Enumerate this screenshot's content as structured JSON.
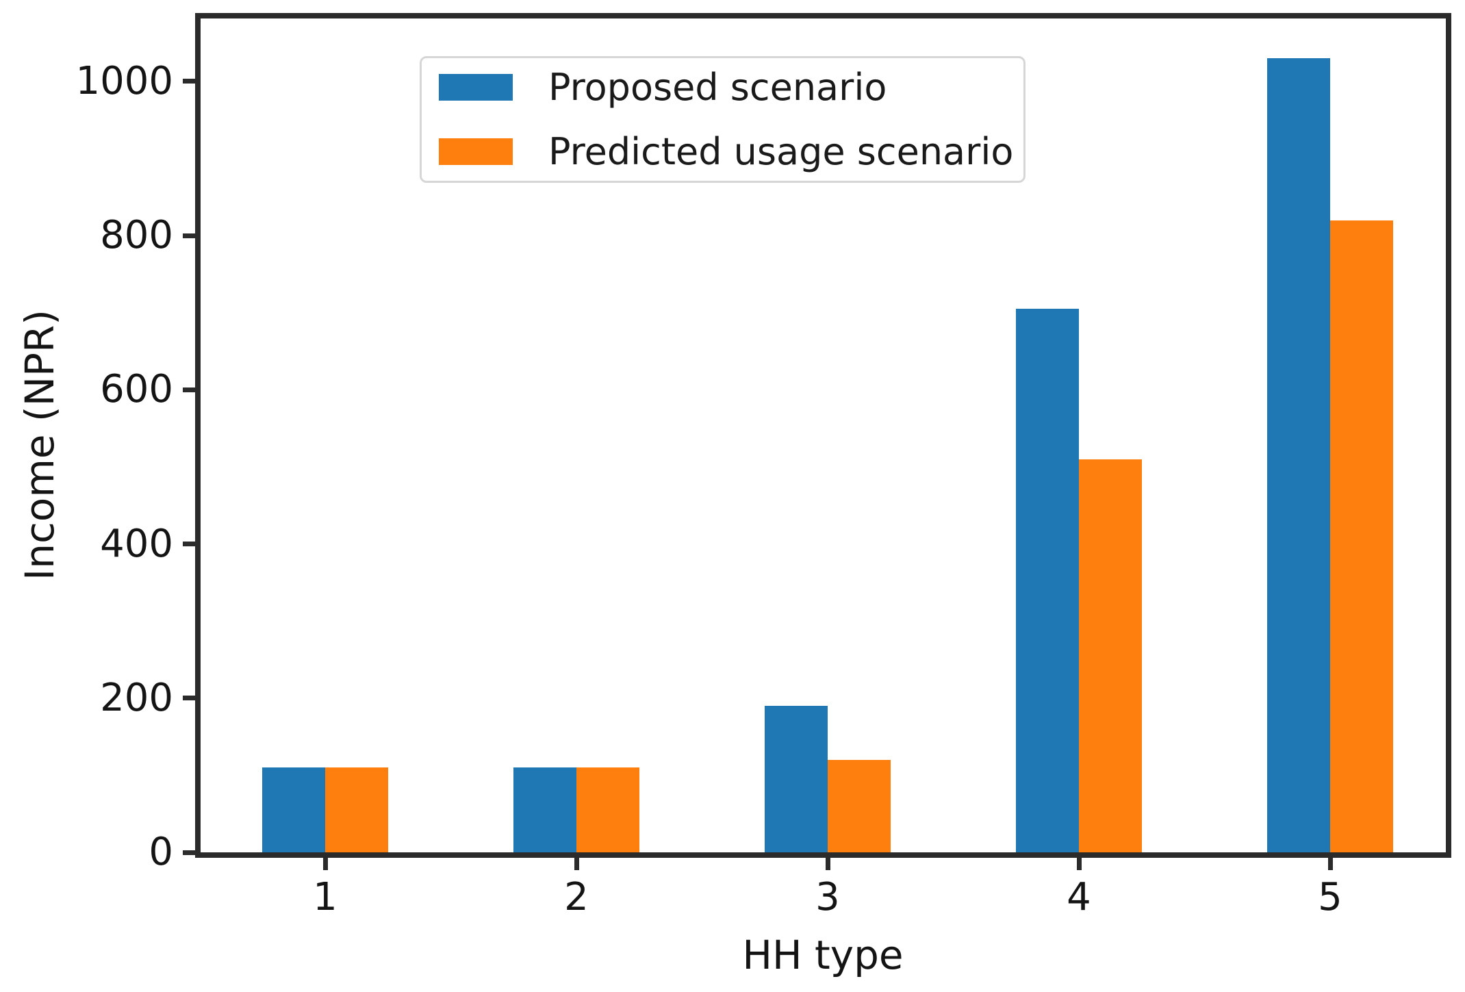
{
  "chart_data": {
    "type": "bar",
    "title": "",
    "xlabel": "HH type",
    "ylabel": "Income (NPR)",
    "categories": [
      "1",
      "2",
      "3",
      "4",
      "5"
    ],
    "series": [
      {
        "name": "Proposed scenario",
        "color": "#1f77b4",
        "values": [
          110,
          110,
          190,
          705,
          1030
        ]
      },
      {
        "name": "Predicted usage scenario",
        "color": "#ff7f0e",
        "values": [
          110,
          110,
          120,
          510,
          820
        ]
      }
    ],
    "yticks": [
      0,
      200,
      400,
      600,
      800,
      1000
    ],
    "ylim": [
      0,
      1081.5
    ],
    "grid": false,
    "legend_position": "upper left",
    "colors": {
      "spine": "#2b2b2b",
      "text": "#141414",
      "legend_border": "#d6d6d6",
      "background": "#ffffff"
    }
  }
}
